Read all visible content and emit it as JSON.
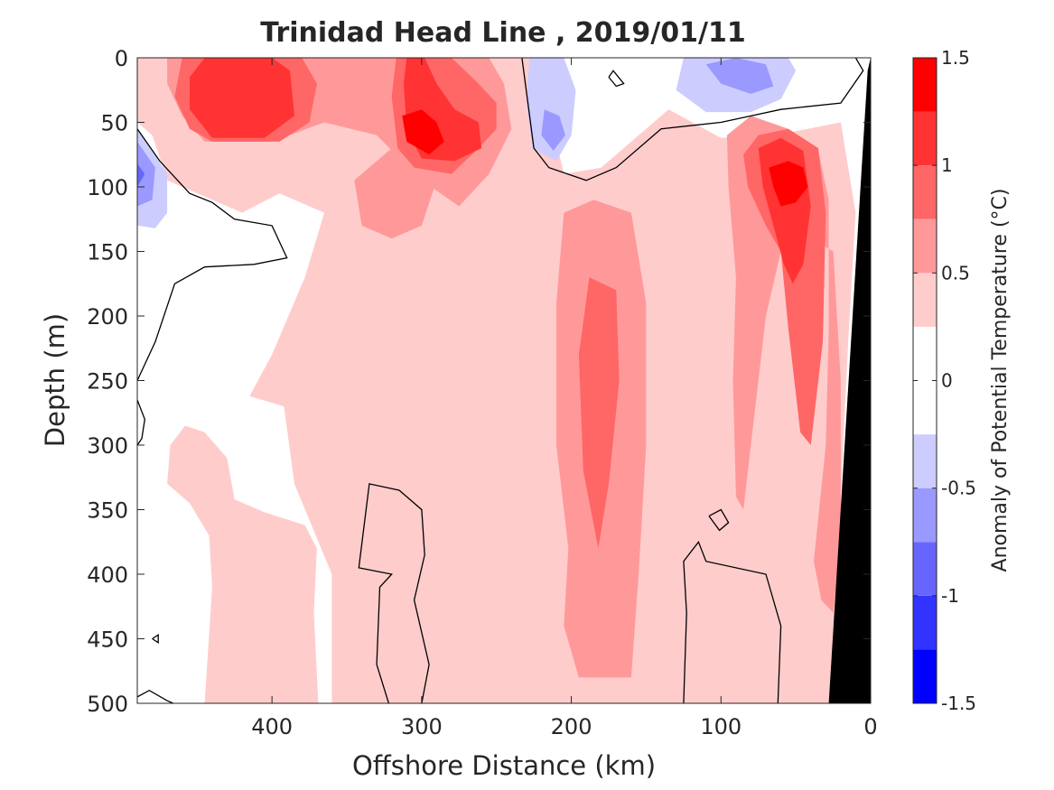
{
  "chart_data": {
    "type": "heatmap",
    "title": "Trinidad Head Line , 2019/01/11",
    "xlabel": "Offshore Distance (km)",
    "ylabel": "Depth (m)",
    "xlim": [
      490,
      0
    ],
    "ylim": [
      0,
      500
    ],
    "x_reversed": true,
    "y_reversed": true,
    "x_ticks": [
      400,
      300,
      200,
      100,
      0
    ],
    "y_ticks": [
      0,
      50,
      100,
      150,
      200,
      250,
      300,
      350,
      400,
      450,
      500
    ],
    "colorbar": {
      "label": "Anomaly of Potential Temperature (°C)",
      "range": [
        -1.5,
        1.5
      ],
      "levels": [
        -1.5,
        -1.25,
        -1.0,
        -0.75,
        -0.5,
        -0.25,
        0.25,
        0.5,
        0.75,
        1.0,
        1.25,
        1.5
      ],
      "tick_values": [
        1.5,
        1,
        0.5,
        0,
        -0.5,
        -1,
        -1.5
      ],
      "tick_labels": [
        "1.5",
        "1",
        "0.5",
        "0",
        "-0.5",
        "-1",
        "-1.5"
      ],
      "colors": [
        "#0000ff",
        "#3333ff",
        "#6666ff",
        "#9999ff",
        "#ccccff",
        "#ffffff",
        "#ffcccc",
        "#ff9999",
        "#ff6666",
        "#ff3333",
        "#ff0000"
      ]
    },
    "zero_contour_color": "#000000",
    "bathymetry_color": "#000000",
    "anomaly_features": [
      {
        "sign": "warm",
        "peak": 1.25,
        "x_range": [
          470,
          370
        ],
        "depth_range": [
          0,
          70
        ]
      },
      {
        "sign": "warm",
        "peak": 1.25,
        "x_range": [
          320,
          250
        ],
        "depth_range": [
          0,
          90
        ]
      },
      {
        "sign": "warm",
        "peak": 0.75,
        "x_range": [
          340,
          280
        ],
        "depth_range": [
          90,
          280
        ]
      },
      {
        "sign": "warm",
        "peak": 0.25,
        "x_range": [
          440,
          370
        ],
        "depth_range": [
          280,
          500
        ]
      },
      {
        "sign": "warm",
        "peak": 0.75,
        "x_range": [
          225,
          140
        ],
        "depth_range": [
          100,
          500
        ]
      },
      {
        "sign": "warm",
        "peak": 1.25,
        "x_range": [
          90,
          25
        ],
        "depth_range": [
          50,
          470
        ]
      },
      {
        "sign": "cold",
        "peak": -0.75,
        "x_range": [
          490,
          460
        ],
        "depth_range": [
          50,
          130
        ]
      },
      {
        "sign": "cold",
        "peak": -0.5,
        "x_range": [
          230,
          200
        ],
        "depth_range": [
          0,
          80
        ]
      },
      {
        "sign": "cold",
        "peak": -0.75,
        "x_range": [
          130,
          50
        ],
        "depth_range": [
          0,
          40
        ]
      }
    ]
  }
}
